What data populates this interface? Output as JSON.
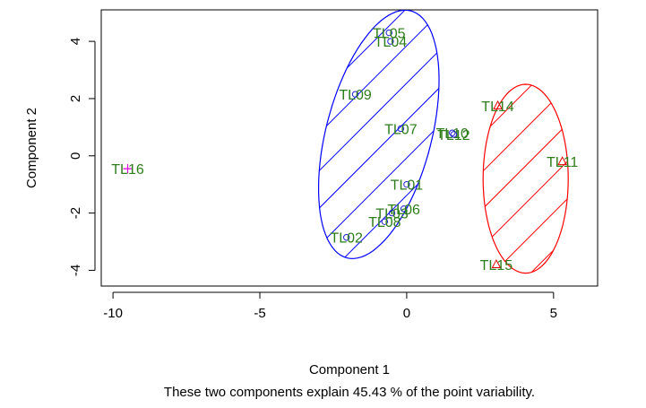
{
  "chart_data": {
    "type": "scatter",
    "xlabel": "Component 1",
    "ylabel": "Component 2",
    "subtitle": "These two components explain 45.43 % of the point variability.",
    "xlim": [
      -10.4,
      6.5
    ],
    "ylim": [
      -4.55,
      5.1
    ],
    "xticks": [
      -10,
      -5,
      0,
      5
    ],
    "yticks": [
      -4,
      -2,
      0,
      2,
      4
    ],
    "grid": false,
    "points": [
      {
        "label": "TL05",
        "x": -0.6,
        "y": 4.3,
        "marker": "circle",
        "color": "#2020d0"
      },
      {
        "label": "TL04",
        "x": -0.55,
        "y": 4.0,
        "marker": "circle",
        "color": "#2020d0"
      },
      {
        "label": "TL09",
        "x": -1.75,
        "y": 2.15,
        "marker": "circle",
        "color": "#2020d0"
      },
      {
        "label": "TL07",
        "x": -0.2,
        "y": 0.95,
        "marker": "circle",
        "color": "#2020d0"
      },
      {
        "label": "TL10",
        "x": 1.55,
        "y": 0.8,
        "marker": "circle",
        "color": "#2020d0"
      },
      {
        "label": "TL12",
        "x": 1.6,
        "y": 0.75,
        "marker": "circle",
        "color": "#2020d0"
      },
      {
        "label": "TL01",
        "x": 0.0,
        "y": -1.0,
        "marker": "circle",
        "color": "#2020d0"
      },
      {
        "label": "TL06",
        "x": -0.1,
        "y": -1.85,
        "marker": "circle",
        "color": "#2020d0"
      },
      {
        "label": "TL03",
        "x": -0.5,
        "y": -2.0,
        "marker": "circle",
        "color": "#2020d0"
      },
      {
        "label": "TL08",
        "x": -0.75,
        "y": -2.3,
        "marker": "circle",
        "color": "#2020d0"
      },
      {
        "label": "TL02",
        "x": -2.05,
        "y": -2.85,
        "marker": "circle",
        "color": "#2020d0"
      },
      {
        "label": "TL14",
        "x": 3.1,
        "y": 1.75,
        "marker": "triangle",
        "color": "#e00000"
      },
      {
        "label": "TL11",
        "x": 5.3,
        "y": -0.2,
        "marker": "triangle",
        "color": "#e00000"
      },
      {
        "label": "TL15",
        "x": 3.05,
        "y": -3.8,
        "marker": "triangle",
        "color": "#e00000"
      },
      {
        "label": "TL16",
        "x": -9.5,
        "y": -0.45,
        "marker": "plus",
        "color": "#e000e0"
      }
    ],
    "clusters": [
      {
        "cx": -0.95,
        "cy": 0.75,
        "a": 4.45,
        "b": 1.8,
        "angle_deg": 76,
        "color": "#0000ff",
        "hatch_angle_deg": 45,
        "hatch_spacing": 0.9
      },
      {
        "cx": 4.05,
        "cy": -0.8,
        "a": 3.3,
        "b": 1.45,
        "angle_deg": 90,
        "color": "#ff0000",
        "hatch_angle_deg": 45,
        "hatch_spacing": 0.9
      }
    ]
  }
}
